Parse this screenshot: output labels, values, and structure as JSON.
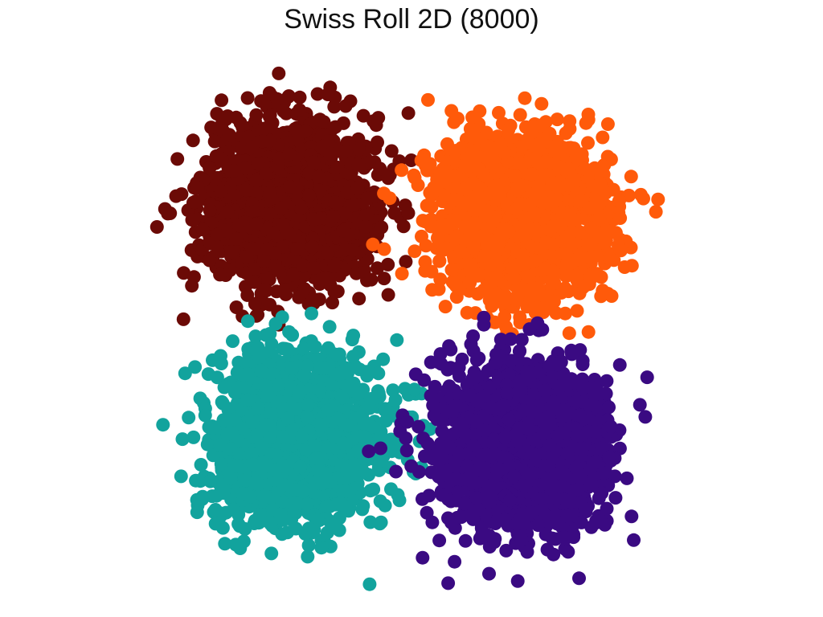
{
  "chart_data": {
    "type": "scatter",
    "title": "Swiss Roll 2D (8000)",
    "xlabel": "",
    "ylabel": "",
    "axes_visible": false,
    "grid": false,
    "legend": "none",
    "total_points": 8000,
    "xlim": [
      -4.2,
      4.2
    ],
    "ylim": [
      -4.3,
      4.2
    ],
    "series": [
      {
        "color": "#6b0a06",
        "center": [
          -1.8,
          1.9
        ],
        "spread": 0.62,
        "count": 2000
      },
      {
        "color": "#ff5a0a",
        "center": [
          1.75,
          1.7
        ],
        "spread": 0.62,
        "count": 2000
      },
      {
        "color": "#12a39d",
        "center": [
          -1.7,
          -1.8
        ],
        "spread": 0.62,
        "count": 2000
      },
      {
        "color": "#3a0a82",
        "center": [
          1.75,
          -1.9
        ],
        "spread": 0.62,
        "count": 2000
      }
    ]
  }
}
